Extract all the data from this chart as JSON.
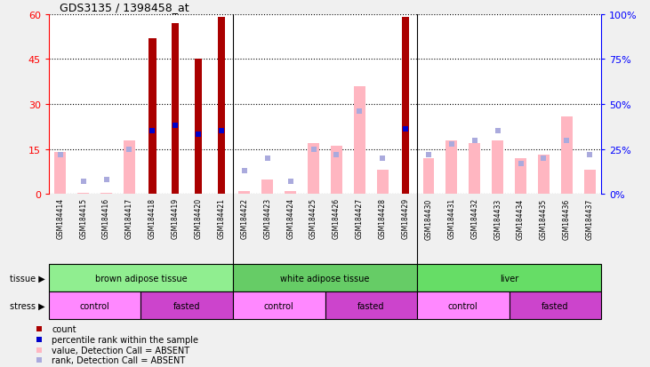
{
  "title": "GDS3135 / 1398458_at",
  "samples": [
    "GSM184414",
    "GSM184415",
    "GSM184416",
    "GSM184417",
    "GSM184418",
    "GSM184419",
    "GSM184420",
    "GSM184421",
    "GSM184422",
    "GSM184423",
    "GSM184424",
    "GSM184425",
    "GSM184426",
    "GSM184427",
    "GSM184428",
    "GSM184429",
    "GSM184430",
    "GSM184431",
    "GSM184432",
    "GSM184433",
    "GSM184434",
    "GSM184435",
    "GSM184436",
    "GSM184437"
  ],
  "count": [
    0,
    0,
    0,
    0,
    52,
    57,
    45,
    59,
    0,
    0,
    0,
    0,
    0,
    0,
    0,
    59,
    0,
    0,
    0,
    0,
    0,
    0,
    0,
    0
  ],
  "percentile_rank": [
    null,
    null,
    null,
    null,
    35,
    38,
    33,
    35,
    null,
    null,
    null,
    null,
    null,
    null,
    null,
    36,
    null,
    null,
    null,
    null,
    null,
    null,
    null,
    null
  ],
  "absent_value": [
    14,
    0.5,
    0.5,
    18,
    null,
    null,
    null,
    null,
    1,
    5,
    1,
    17,
    16,
    36,
    8,
    null,
    12,
    18,
    17,
    18,
    12,
    13,
    26,
    8
  ],
  "absent_rank": [
    22,
    7,
    8,
    25,
    null,
    null,
    null,
    null,
    13,
    20,
    7,
    25,
    22,
    46,
    20,
    null,
    22,
    28,
    30,
    35,
    17,
    20,
    30,
    22
  ],
  "ylim_left": [
    0,
    60
  ],
  "ylim_right": [
    0,
    100
  ],
  "yticks_left": [
    0,
    15,
    30,
    45,
    60
  ],
  "yticks_right": [
    0,
    25,
    50,
    75,
    100
  ],
  "tissue_groups": [
    {
      "label": "brown adipose tissue",
      "start": 0,
      "end": 7,
      "color": "#90EE90"
    },
    {
      "label": "white adipose tissue",
      "start": 8,
      "end": 15,
      "color": "#66CC66"
    },
    {
      "label": "liver",
      "start": 16,
      "end": 23,
      "color": "#66DD66"
    }
  ],
  "stress_groups": [
    {
      "label": "control",
      "start": 0,
      "end": 3,
      "color": "#FF88FF"
    },
    {
      "label": "fasted",
      "start": 4,
      "end": 7,
      "color": "#CC44CC"
    },
    {
      "label": "control",
      "start": 8,
      "end": 11,
      "color": "#FF88FF"
    },
    {
      "label": "fasted",
      "start": 12,
      "end": 15,
      "color": "#CC44CC"
    },
    {
      "label": "control",
      "start": 16,
      "end": 19,
      "color": "#FF88FF"
    },
    {
      "label": "fasted",
      "start": 20,
      "end": 23,
      "color": "#CC44CC"
    }
  ],
  "count_color": "#AA0000",
  "absent_value_color": "#FFB6C1",
  "percentile_color": "#0000CC",
  "absent_rank_color": "#AAAADD",
  "fig_bg": "#F0F0F0",
  "plot_bg": "#FFFFFF",
  "xtick_bg": "#C8C8C8",
  "legend_items": [
    {
      "label": "count",
      "color": "#AA0000",
      "marker": "s"
    },
    {
      "label": "percentile rank within the sample",
      "color": "#0000CC",
      "marker": "s"
    },
    {
      "label": "value, Detection Call = ABSENT",
      "color": "#FFB6C1",
      "marker": "s"
    },
    {
      "label": "rank, Detection Call = ABSENT",
      "color": "#AAAADD",
      "marker": "s"
    }
  ]
}
